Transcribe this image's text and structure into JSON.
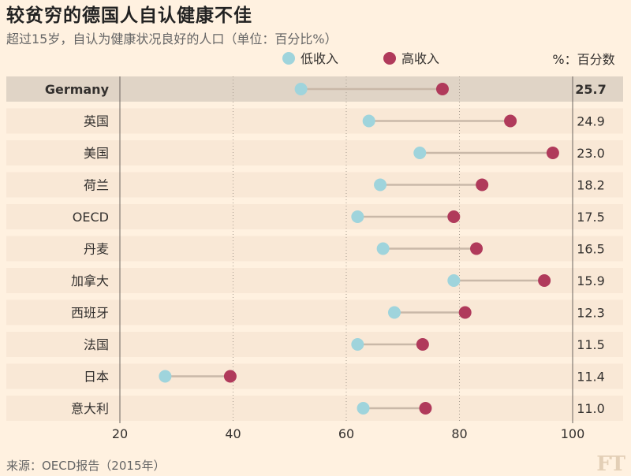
{
  "title": "较贫穷的德国人自认健康不佳",
  "subtitle": "超过15岁，自认为健康状况良好的人口（单位：百分比%）",
  "source": "来源：OECD报告（2015年）",
  "logo": "FT",
  "colors": {
    "background": "#fff1e0",
    "row_band": "#f9e8d6",
    "highlight_row": "#e0d4c6",
    "low_income": "#9fd4dc",
    "high_income": "#b03a5b",
    "connector": "#c9b8a8"
  },
  "chart_data": {
    "type": "dumbbell",
    "value_header": "%：百分数",
    "x_ticks": [
      20,
      40,
      60,
      80,
      100
    ],
    "xlim": [
      20,
      100
    ],
    "grid": "dotted vertical",
    "legend_position": "top",
    "series": [
      {
        "name": "低收入",
        "color": "#9fd4dc"
      },
      {
        "name": "高收入",
        "color": "#b03a5b"
      }
    ],
    "rows": [
      {
        "label": "Germany",
        "low": 52,
        "high": 77,
        "gap": "25.7",
        "highlight": true
      },
      {
        "label": "英国",
        "low": 64,
        "high": 89,
        "gap": "24.9"
      },
      {
        "label": "美国",
        "low": 73,
        "high": 96.5,
        "gap": "23.0"
      },
      {
        "label": "荷兰",
        "low": 66,
        "high": 84,
        "gap": "18.2"
      },
      {
        "label": "OECD",
        "low": 62,
        "high": 79,
        "gap": "17.5"
      },
      {
        "label": "丹麦",
        "low": 66.5,
        "high": 83,
        "gap": "16.5"
      },
      {
        "label": "加拿大",
        "low": 79,
        "high": 95,
        "gap": "15.9"
      },
      {
        "label": "西班牙",
        "low": 68.5,
        "high": 81,
        "gap": "12.3"
      },
      {
        "label": "法国",
        "low": 62,
        "high": 73.5,
        "gap": "11.5"
      },
      {
        "label": "日本",
        "low": 28,
        "high": 39.5,
        "gap": "11.4"
      },
      {
        "label": "意大利",
        "low": 63,
        "high": 74,
        "gap": "11.0"
      }
    ]
  }
}
